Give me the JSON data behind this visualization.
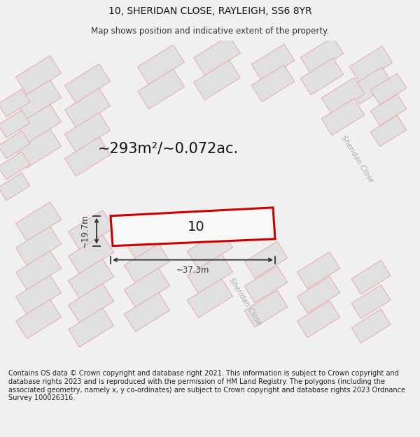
{
  "title": "10, SHERIDAN CLOSE, RAYLEIGH, SS6 8YR",
  "subtitle": "Map shows position and indicative extent of the property.",
  "area_text": "~293m²/~0.072ac.",
  "width_label": "~37.3m",
  "height_label": "~19.7m",
  "property_label": "10",
  "footer_text": "Contains OS data © Crown copyright and database right 2021. This information is subject to Crown copyright and database rights 2023 and is reproduced with the permission of HM Land Registry. The polygons (including the associated geometry, namely x, y co-ordinates) are subject to Crown copyright and database rights 2023 Ordnance Survey 100026316.",
  "bg_color": "#f0f0f0",
  "map_bg": "#f0f0f0",
  "building_fill": "#e0e0e0",
  "building_edge": "#e8a8a8",
  "property_edge": "#cc0000",
  "property_fill": "#f8f8f8",
  "street_label_color": "#aaaaaa",
  "dim_color": "#333333",
  "title_fontsize": 10,
  "subtitle_fontsize": 8.5,
  "area_fontsize": 15,
  "prop_label_fontsize": 14,
  "footer_fontsize": 7.0,
  "street_fontsize": 7.5
}
